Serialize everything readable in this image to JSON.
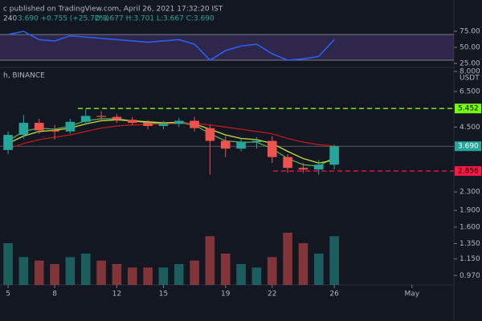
{
  "chart_data": {
    "type": "candlestick",
    "header": "c published on TradingView.com, April 26, 2021 17:32:20 IST",
    "interval": "240",
    "change": "3.690 +0.755 (+25.72%)",
    "ohlc": "O:3.677 H:3.701 L:3.667 C:3.690",
    "symbol": "h, BINANCE",
    "unit": "USDT",
    "x": [
      5,
      6,
      7,
      8,
      9,
      10,
      11,
      12,
      13,
      14,
      15,
      16,
      17,
      18,
      19,
      20,
      21,
      22,
      23,
      24,
      25,
      26
    ],
    "open": [
      3.55,
      4.15,
      4.7,
      4.35,
      4.3,
      4.75,
      5.05,
      5.0,
      4.85,
      4.7,
      4.55,
      4.65,
      4.8,
      4.45,
      3.9,
      3.6,
      3.85,
      3.9,
      3.3,
      2.95,
      2.9,
      3.05
    ],
    "high": [
      4.3,
      5.1,
      4.9,
      4.6,
      4.9,
      5.45,
      5.3,
      5.15,
      5.0,
      4.85,
      4.8,
      4.95,
      5.0,
      4.6,
      4.1,
      4.0,
      4.05,
      4.1,
      3.4,
      3.1,
      3.2,
      3.75
    ],
    "low": [
      3.4,
      4.0,
      4.2,
      3.95,
      4.2,
      4.6,
      4.8,
      4.7,
      4.6,
      4.4,
      4.4,
      4.5,
      4.3,
      2.75,
      3.3,
      3.5,
      3.6,
      3.1,
      2.8,
      2.8,
      2.75,
      2.9
    ],
    "close": [
      4.15,
      4.7,
      4.35,
      4.3,
      4.75,
      5.05,
      5.0,
      4.85,
      4.7,
      4.55,
      4.65,
      4.8,
      4.45,
      3.9,
      3.6,
      3.85,
      3.9,
      3.3,
      2.95,
      2.9,
      3.05,
      3.69
    ],
    "series": [
      {
        "color": "#4caf50",
        "values": [
          3.9,
          4.3,
          4.45,
          4.4,
          4.55,
          4.8,
          4.9,
          4.9,
          4.8,
          4.7,
          4.65,
          4.7,
          4.6,
          4.2,
          3.9,
          3.85,
          3.85,
          3.6,
          3.25,
          3.05,
          3.0,
          3.3
        ]
      },
      {
        "color": "#cddc39",
        "values": [
          3.8,
          4.1,
          4.3,
          4.35,
          4.45,
          4.65,
          4.8,
          4.85,
          4.8,
          4.75,
          4.7,
          4.72,
          4.65,
          4.4,
          4.15,
          4.0,
          3.95,
          3.8,
          3.5,
          3.25,
          3.1,
          3.2
        ]
      },
      {
        "color": "#b71c1c",
        "values": [
          3.6,
          3.8,
          3.95,
          4.05,
          4.15,
          4.3,
          4.45,
          4.55,
          4.6,
          4.62,
          4.65,
          4.67,
          4.68,
          4.6,
          4.5,
          4.4,
          4.3,
          4.2,
          4.0,
          3.85,
          3.75,
          3.7
        ]
      }
    ],
    "volume": [
      60,
      40,
      35,
      30,
      40,
      45,
      35,
      30,
      25,
      25,
      25,
      30,
      35,
      70,
      45,
      30,
      25,
      40,
      75,
      60,
      45,
      70
    ],
    "rsi": [
      70,
      75,
      62,
      60,
      68,
      66,
      64,
      62,
      60,
      58,
      60,
      62,
      55,
      30,
      45,
      52,
      55,
      40,
      30,
      32,
      36,
      62
    ],
    "rsi_color": "#2962ff",
    "up_color": "#26a69a",
    "down_color": "#ef5350",
    "log_scale": true,
    "xlim": [
      4.48,
      33.7
    ],
    "xticks": [
      {
        "value": 5,
        "label": "5"
      },
      {
        "value": 8,
        "label": "8"
      },
      {
        "value": 12,
        "label": "12"
      },
      {
        "value": 15,
        "label": "15"
      },
      {
        "value": 19,
        "label": "19"
      },
      {
        "value": 22,
        "label": "22"
      },
      {
        "value": 26,
        "label": "26"
      },
      {
        "value": 31,
        "label": "May"
      }
    ],
    "ylim": [
      0.88,
      8.2
    ],
    "yticks": [
      {
        "value": 8,
        "label": "8.000"
      },
      {
        "value": 6.5,
        "label": "6.500"
      },
      {
        "value": 4.5,
        "label": "4.500"
      },
      {
        "value": 2.3,
        "label": "2.300"
      },
      {
        "value": 1.9,
        "label": "1.900"
      },
      {
        "value": 1.6,
        "label": "1.600"
      },
      {
        "value": 1.35,
        "label": "1.350"
      },
      {
        "value": 1.15,
        "label": "1.150"
      },
      {
        "value": 0.97,
        "label": "0.970"
      }
    ],
    "rsi_ylim": [
      20,
      80
    ],
    "rsi_yticks": [
      {
        "value": 75,
        "label": "75.00"
      },
      {
        "value": 50,
        "label": "50.00"
      },
      {
        "value": 25,
        "label": "25.00"
      }
    ],
    "rsi_band": [
      30,
      70
    ],
    "levels": [
      {
        "value": 5.452,
        "label": "5.452",
        "color": "#76ff03"
      },
      {
        "value": 2.856,
        "label": "2.856",
        "color": "#ff1744"
      }
    ],
    "last": {
      "value": 3.69,
      "label": "3.690"
    }
  }
}
